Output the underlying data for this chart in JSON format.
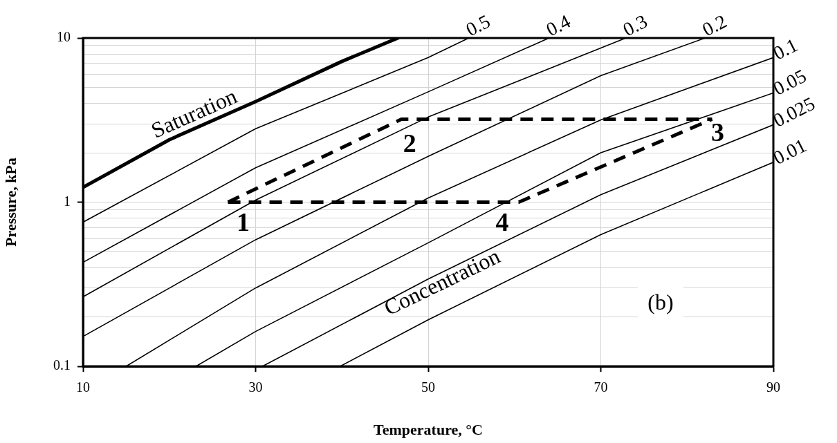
{
  "chart_data": {
    "type": "line",
    "xlabel": "Temperature, °C",
    "ylabel": "Pressure, kPa",
    "xlim": [
      10,
      90
    ],
    "xticks": [
      10,
      30,
      50,
      70,
      90
    ],
    "ylim": [
      0.1,
      10
    ],
    "yticks": [
      0.1,
      {
        "value": 0.2,
        "label": null
      },
      {
        "value": 0.3,
        "label": null
      },
      {
        "value": 0.4,
        "label": null
      },
      {
        "value": 0.5,
        "label": null
      },
      {
        "value": 0.6,
        "label": null
      },
      {
        "value": 0.7,
        "label": null
      },
      {
        "value": 0.8,
        "label": null
      },
      {
        "value": 0.9,
        "label": null
      },
      1,
      {
        "value": 2,
        "label": null
      },
      {
        "value": 3,
        "label": null
      },
      {
        "value": 4,
        "label": null
      },
      {
        "value": 5,
        "label": null
      },
      {
        "value": 6,
        "label": null
      },
      {
        "value": 7,
        "label": null
      },
      {
        "value": 8,
        "label": null
      },
      {
        "value": 9,
        "label": null
      },
      10
    ],
    "log": "y",
    "grid": true,
    "legend": false,
    "marker": "none",
    "line_style": "solid",
    "series": [
      {
        "name": "Saturation",
        "color": "#000000",
        "x": [
          10,
          20,
          30,
          40,
          46.5
        ],
        "values": [
          1.23,
          2.4,
          4.1,
          7.2,
          10
        ]
      },
      {
        "name": "0.5",
        "color": "#000000",
        "x": [
          10,
          30,
          50,
          54.7
        ],
        "values": [
          0.755,
          2.8,
          7.6,
          10
        ]
      },
      {
        "name": "0.4",
        "color": "#000000",
        "x": [
          10,
          30,
          50,
          64
        ],
        "values": [
          0.43,
          1.62,
          4.7,
          10
        ]
      },
      {
        "name": "0.3",
        "color": "#000000",
        "x": [
          10,
          30,
          50,
          72.9
        ],
        "values": [
          0.265,
          1.03,
          3.3,
          10
        ]
      },
      {
        "name": "0.2",
        "color": "#000000",
        "x": [
          10,
          30,
          50,
          70,
          82.1
        ],
        "values": [
          0.152,
          0.59,
          1.9,
          5.9,
          10
        ]
      },
      {
        "name": "0.1",
        "color": "#000000",
        "x": [
          15,
          30,
          50,
          70,
          90
        ],
        "values": [
          0.1,
          0.3,
          1.06,
          3.17,
          7.6
        ]
      },
      {
        "name": "0.05",
        "color": "#000000",
        "x": [
          23.1,
          30,
          50,
          70,
          90
        ],
        "values": [
          0.1,
          0.163,
          0.565,
          2.0,
          4.63
        ]
      },
      {
        "name": "0.025",
        "color": "#000000",
        "x": [
          30.8,
          50,
          70,
          90
        ],
        "values": [
          0.1,
          0.34,
          1.11,
          2.96
        ]
      },
      {
        "name": "0.01",
        "color": "#000000",
        "x": [
          39.8,
          50,
          70,
          90
        ],
        "values": [
          0.1,
          0.192,
          0.634,
          1.75
        ]
      },
      {
        "color": "#000000",
        "line_style": "dashed",
        "x": [
          26.8,
          46.9,
          82.9
        ],
        "values": [
          1,
          3.2,
          3.2
        ]
      },
      {
        "color": "#000000",
        "line_style": "dashed",
        "x": [
          26.8,
          60.5,
          82.9
        ],
        "values": [
          1,
          1,
          3.2
        ]
      }
    ],
    "annotations": [
      {
        "text": "1",
        "x": 26.8,
        "y": 1
      },
      {
        "text": "2",
        "x": 46.9,
        "y": 3.2
      },
      {
        "text": "3",
        "x": 82.9,
        "y": 3.2
      },
      {
        "text": "4",
        "x": 60.5,
        "y": 1
      },
      "Concentration",
      "(b)"
    ]
  }
}
